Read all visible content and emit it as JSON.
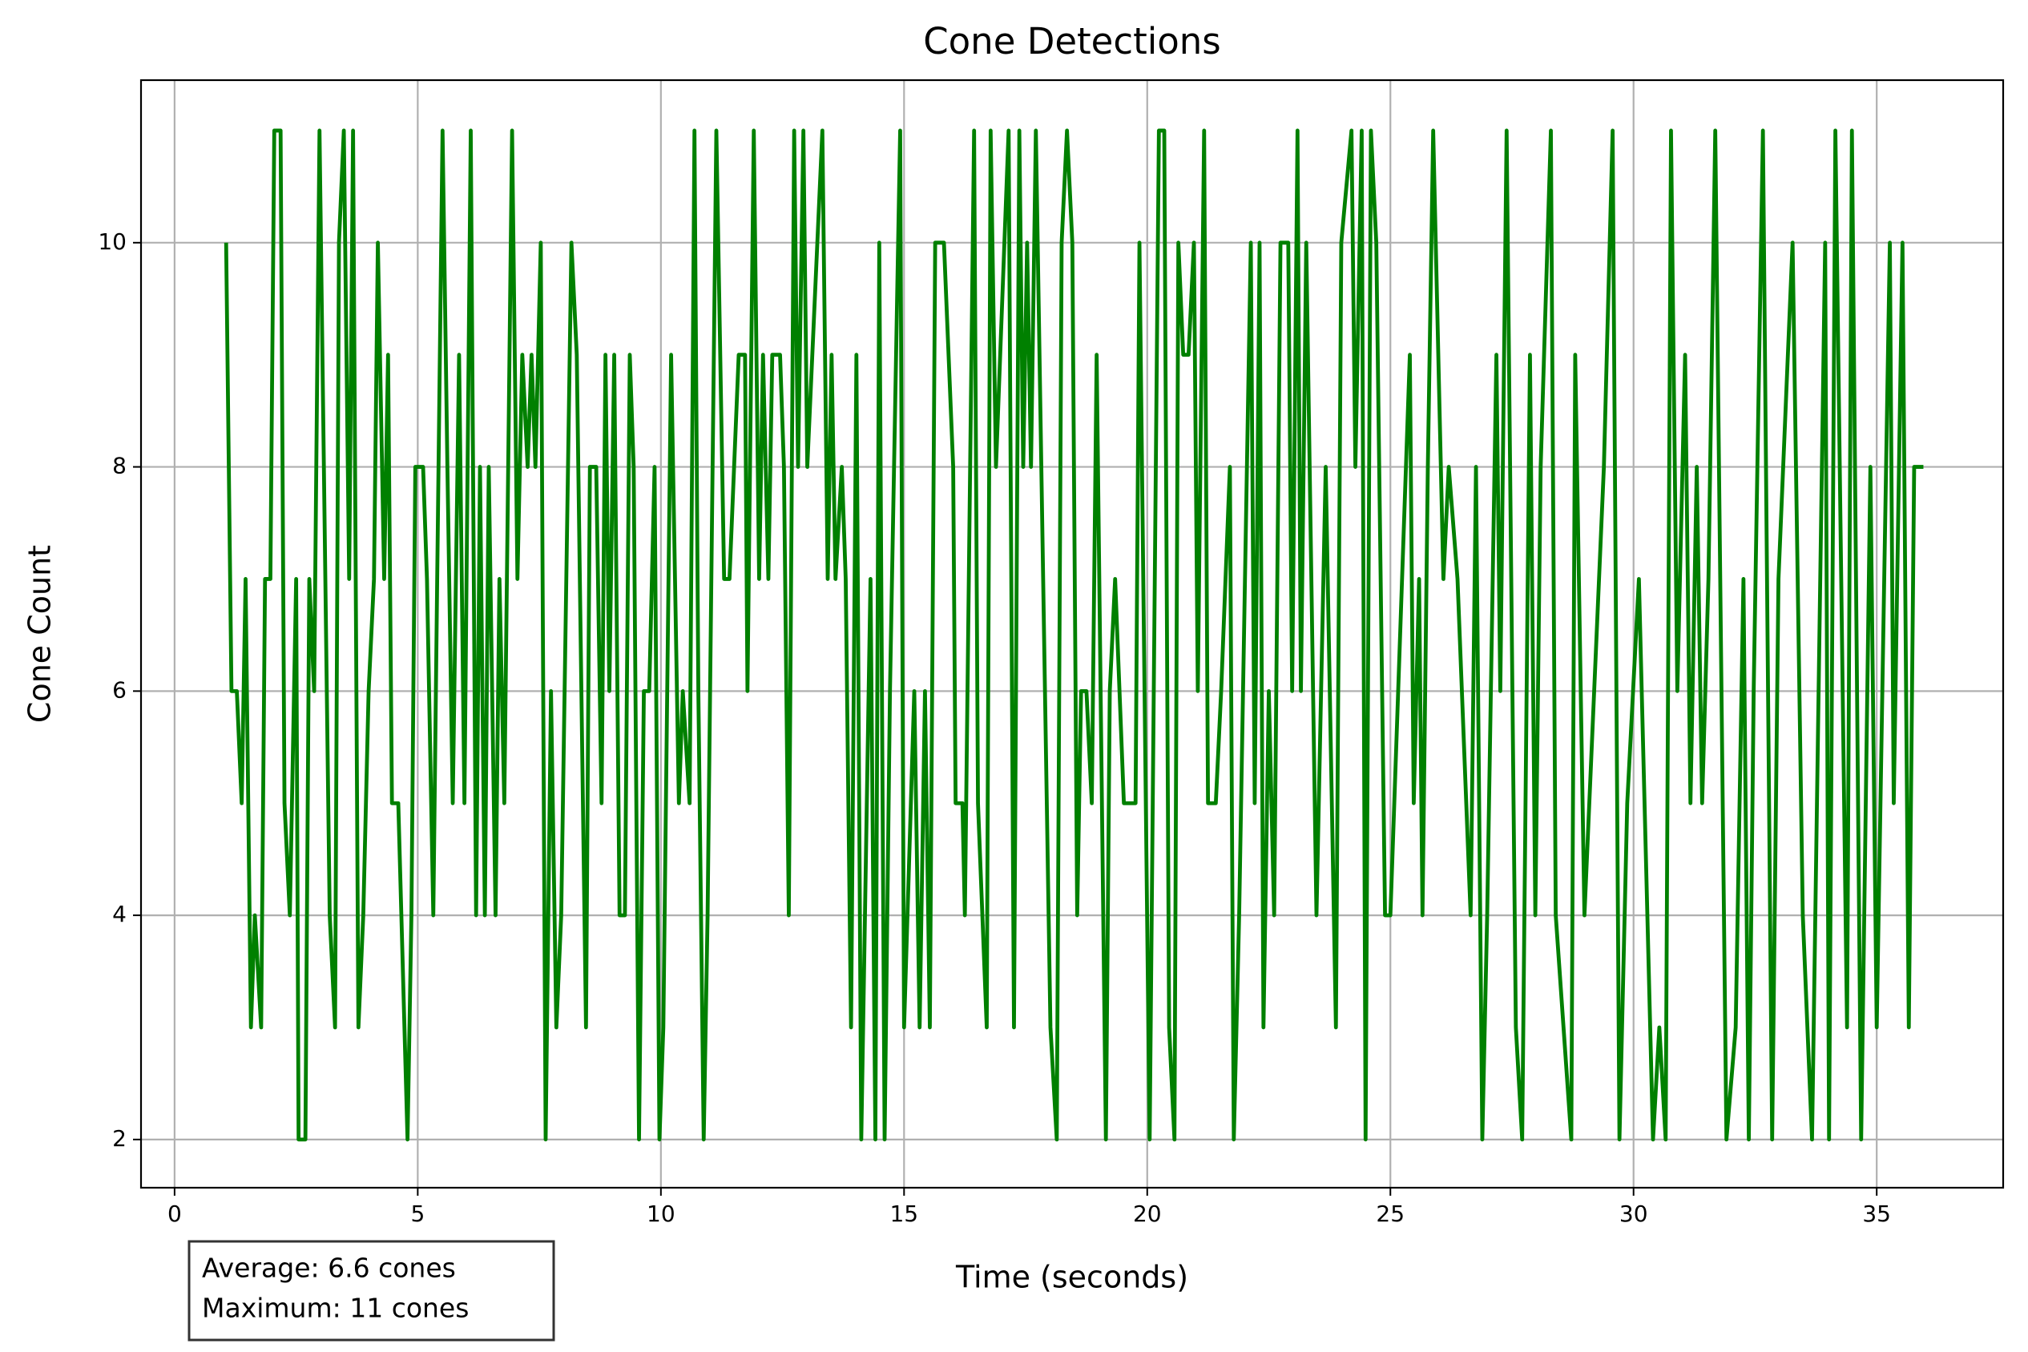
{
  "chart_data": {
    "type": "line",
    "title": "Cone Detections",
    "x_label": "Time (seconds)",
    "y_label": "Cone Count",
    "annotations": [
      "Average: 6.6 cones",
      "Maximum: 11 cones"
    ],
    "xlim": [
      -0.69,
      37.6
    ],
    "ylim": [
      1.57,
      11.45
    ],
    "xticks": [
      0,
      5,
      10,
      15,
      20,
      25,
      30,
      35
    ],
    "yticks": [
      2,
      4,
      6,
      8,
      10
    ],
    "grid": true,
    "series": [
      {
        "name": "Cone Count",
        "color": "#008000",
        "x": [
          1.06,
          1.17,
          1.28,
          1.38,
          1.46,
          1.57,
          1.65,
          1.78,
          1.86,
          1.97,
          2.05,
          2.18,
          2.26,
          2.37,
          2.5,
          2.55,
          2.69,
          2.77,
          2.87,
          2.98,
          3.19,
          3.3,
          3.38,
          3.48,
          3.59,
          3.67,
          3.78,
          3.88,
          3.99,
          4.1,
          4.18,
          4.31,
          4.39,
          4.47,
          4.6,
          4.79,
          4.87,
          4.95,
          5.11,
          5.19,
          5.32,
          5.4,
          5.51,
          5.61,
          5.72,
          5.85,
          5.96,
          6.09,
          6.2,
          6.28,
          6.38,
          6.46,
          6.6,
          6.68,
          6.78,
          6.94,
          7.05,
          7.15,
          7.26,
          7.34,
          7.42,
          7.53,
          7.63,
          7.74,
          7.85,
          7.95,
          8.16,
          8.27,
          8.46,
          8.54,
          8.67,
          8.78,
          8.86,
          8.94,
          9.04,
          9.15,
          9.26,
          9.36,
          9.44,
          9.55,
          9.65,
          9.76,
          9.87,
          9.97,
          10.05,
          10.21,
          10.29,
          10.37,
          10.45,
          10.59,
          10.69,
          10.77,
          10.88,
          10.96,
          11.14,
          11.22,
          11.3,
          11.41,
          11.6,
          11.73,
          11.78,
          11.91,
          12.02,
          12.1,
          12.21,
          12.29,
          12.45,
          12.53,
          12.63,
          12.74,
          12.82,
          12.93,
          13.01,
          13.32,
          13.43,
          13.51,
          13.59,
          13.72,
          13.8,
          13.91,
          14.02,
          14.12,
          14.31,
          14.41,
          14.49,
          14.6,
          14.71,
          14.92,
          15.0,
          15.21,
          15.32,
          15.43,
          15.53,
          15.64,
          15.82,
          16.01,
          16.06,
          16.2,
          16.25,
          16.44,
          16.52,
          16.7,
          16.78,
          16.89,
          17.15,
          17.26,
          17.37,
          17.45,
          17.53,
          17.61,
          17.71,
          18.01,
          18.14,
          18.24,
          18.35,
          18.46,
          18.56,
          18.64,
          18.75,
          18.86,
          18.96,
          19.15,
          19.23,
          19.34,
          19.52,
          19.76,
          19.84,
          20.05,
          20.24,
          20.35,
          20.45,
          20.56,
          20.64,
          20.74,
          20.85,
          20.96,
          21.04,
          21.17,
          21.25,
          21.41,
          21.52,
          21.7,
          21.78,
          21.89,
          22.13,
          22.21,
          22.31,
          22.39,
          22.5,
          22.61,
          22.74,
          22.9,
          22.98,
          23.09,
          23.16,
          23.27,
          23.48,
          23.67,
          23.88,
          23.99,
          24.2,
          24.28,
          24.41,
          24.49,
          24.6,
          24.71,
          24.89,
          25.0,
          25.4,
          25.48,
          25.59,
          25.66,
          25.77,
          25.88,
          26.09,
          26.2,
          26.38,
          26.65,
          26.76,
          26.89,
          26.99,
          27.18,
          27.26,
          27.39,
          27.58,
          27.71,
          27.87,
          27.98,
          28.09,
          28.3,
          28.4,
          28.72,
          28.8,
          28.99,
          29.39,
          29.57,
          29.71,
          29.87,
          30.11,
          30.4,
          30.53,
          30.66,
          30.77,
          30.9,
          31.06,
          31.17,
          31.3,
          31.41,
          31.54,
          31.68,
          31.91,
          32.1,
          32.26,
          32.37,
          32.47,
          32.66,
          32.85,
          32.98,
          33.27,
          33.48,
          33.67,
          33.94,
          34.02,
          34.15,
          34.39,
          34.49,
          34.68,
          34.87,
          35.0,
          35.27,
          35.35,
          35.53,
          35.66,
          35.77,
          35.96
        ],
        "values": [
          10,
          6,
          6,
          5,
          7,
          3,
          4,
          3,
          7,
          7,
          11,
          11,
          5,
          4,
          7,
          2,
          2,
          7,
          6,
          11,
          4,
          3,
          10,
          11,
          7,
          11,
          3,
          4,
          6,
          7,
          10,
          7,
          9,
          5,
          5,
          2,
          4,
          8,
          8,
          7,
          4,
          7,
          11,
          8,
          5,
          9,
          5,
          11,
          4,
          8,
          4,
          8,
          4,
          7,
          5,
          11,
          7,
          9,
          8,
          9,
          8,
          10,
          2,
          6,
          3,
          4,
          10,
          9,
          3,
          8,
          8,
          5,
          9,
          6,
          9,
          4,
          4,
          9,
          8,
          2,
          6,
          6,
          8,
          2,
          3,
          9,
          7,
          5,
          6,
          5,
          11,
          6,
          2,
          4,
          11,
          9,
          7,
          7,
          9,
          9,
          6,
          11,
          7,
          9,
          7,
          9,
          9,
          8,
          4,
          11,
          8,
          11,
          8,
          11,
          7,
          9,
          7,
          8,
          7,
          3,
          9,
          2,
          7,
          2,
          10,
          2,
          6,
          11,
          3,
          6,
          3,
          6,
          3,
          10,
          10,
          8,
          5,
          5,
          4,
          11,
          5,
          3,
          11,
          8,
          11,
          3,
          11,
          8,
          10,
          8,
          11,
          3,
          2,
          10,
          11,
          10,
          4,
          6,
          6,
          5,
          9,
          2,
          6,
          7,
          5,
          5,
          10,
          2,
          11,
          11,
          3,
          2,
          10,
          9,
          9,
          10,
          6,
          11,
          5,
          5,
          6,
          8,
          2,
          4,
          10,
          5,
          10,
          3,
          6,
          4,
          10,
          10,
          6,
          11,
          6,
          10,
          4,
          8,
          3,
          10,
          11,
          8,
          11,
          2,
          11,
          10,
          4,
          4,
          9,
          5,
          7,
          4,
          8,
          11,
          7,
          8,
          7,
          4,
          8,
          2,
          4,
          9,
          6,
          11,
          3,
          2,
          9,
          4,
          8,
          11,
          4,
          2,
          9,
          4,
          8,
          11,
          2,
          5,
          7,
          2,
          3,
          2,
          11,
          6,
          9,
          5,
          8,
          5,
          7,
          11,
          2,
          3,
          7,
          2,
          6,
          11,
          2,
          7,
          10,
          4,
          2,
          10,
          2,
          11,
          3,
          11,
          2,
          8,
          3,
          10,
          5,
          10,
          3,
          8,
          8
        ]
      }
    ]
  }
}
